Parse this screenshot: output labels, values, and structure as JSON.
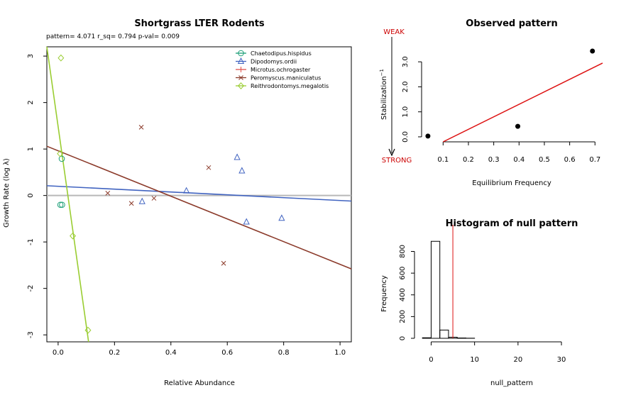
{
  "chart_data": [
    {
      "type": "scatter",
      "title": "Shortgrass LTER Rodents",
      "subtitle": "pattern= 4.071 r_sq= 0.794 p-val= 0.009",
      "xlabel": "Relative Abundance",
      "ylabel": "Growth Rate (log  λ)",
      "xlim": [
        -0.04,
        1.04
      ],
      "ylim": [
        -3.15,
        3.2
      ],
      "x_ticks": [
        "0.0",
        "0.2",
        "0.4",
        "0.6",
        "0.8",
        "1.0"
      ],
      "y_ticks": [
        "3",
        "2",
        "1",
        "0",
        "-1",
        "-2",
        "-3"
      ],
      "reference_line_y": 0,
      "legend_position": "top-right",
      "series": [
        {
          "name": "Chaetodipus.hispidus",
          "color": "#1b9e77",
          "marker": "circle",
          "points": [
            [
              0.013,
              0.79
            ],
            [
              0.008,
              -0.2
            ],
            [
              0.014,
              -0.2
            ]
          ],
          "line": null
        },
        {
          "name": "Dipodomys.ordii",
          "color": "#4063c0",
          "marker": "triangle",
          "points": [
            [
              0.298,
              -0.13
            ],
            [
              0.455,
              0.1
            ],
            [
              0.635,
              0.82
            ],
            [
              0.652,
              0.53
            ],
            [
              0.668,
              -0.57
            ],
            [
              0.793,
              -0.49
            ]
          ],
          "line": [
            [
              -0.04,
              0.21
            ],
            [
              1.04,
              -0.12
            ]
          ]
        },
        {
          "name": "Microtus.ochrogaster",
          "color": "#e0524a",
          "marker": "plus",
          "points": [],
          "line": null
        },
        {
          "name": "Peromyscus.maniculatus",
          "color": "#8b3a2a",
          "marker": "x",
          "points": [
            [
              0.176,
              0.05
            ],
            [
              0.26,
              -0.17
            ],
            [
              0.295,
              1.47
            ],
            [
              0.34,
              -0.06
            ],
            [
              0.534,
              0.6
            ],
            [
              0.587,
              -1.46
            ]
          ],
          "line": [
            [
              -0.04,
              1.06
            ],
            [
              1.04,
              -1.58
            ]
          ]
        },
        {
          "name": "Reithrodontomys.megalotis",
          "color": "#9acd32",
          "marker": "diamond",
          "points": [
            [
              0.01,
              2.96
            ],
            [
              0.007,
              0.9
            ],
            [
              0.052,
              -0.87
            ],
            [
              0.106,
              -2.9
            ]
          ],
          "line": [
            [
              -0.04,
              3.2
            ],
            [
              0.108,
              -3.15
            ]
          ]
        }
      ]
    },
    {
      "type": "scatter",
      "title": "Observed pattern",
      "xlabel": "Equilibrium Frequency",
      "ylabel": "Stabilization",
      "ylabel_superscript": "−1",
      "xlim": [
        0.015,
        0.73
      ],
      "ylim": [
        -0.2,
        3.6
      ],
      "x_ticks": [
        "0.1",
        "0.2",
        "0.3",
        "0.4",
        "0.5",
        "0.6",
        "0.7"
      ],
      "y_ticks": [
        "0.0",
        "1.0",
        "2.0",
        "3.0"
      ],
      "annotation_top": "WEAK",
      "annotation_bottom": "STRONG",
      "annotation_color": "#cc0000",
      "points": [
        [
          0.04,
          0.03
        ],
        [
          0.395,
          0.42
        ],
        [
          0.69,
          3.43
        ]
      ],
      "fit_line": [
        [
          0.1,
          -0.2
        ],
        [
          0.75,
          3.05
        ]
      ],
      "fit_color": "#dd1111"
    },
    {
      "type": "bar",
      "title": "Histogram of null pattern",
      "xlabel": "null_pattern",
      "ylabel": "Frequency",
      "xlim": [
        -2.2,
        38
      ],
      "ylim": [
        0,
        960
      ],
      "x_ticks": [
        "0",
        "10",
        "20",
        "30"
      ],
      "y_ticks": [
        "0",
        "200",
        "400",
        "600",
        "800"
      ],
      "bins": [
        [
          -2,
          0,
          5
        ],
        [
          0,
          2,
          893
        ],
        [
          2,
          4,
          76
        ],
        [
          4,
          6,
          10
        ],
        [
          6,
          8,
          3
        ],
        [
          8,
          10,
          1
        ],
        [
          10,
          38,
          0
        ]
      ],
      "observed_line": 5.0,
      "observed_color": "#dd1111"
    }
  ]
}
